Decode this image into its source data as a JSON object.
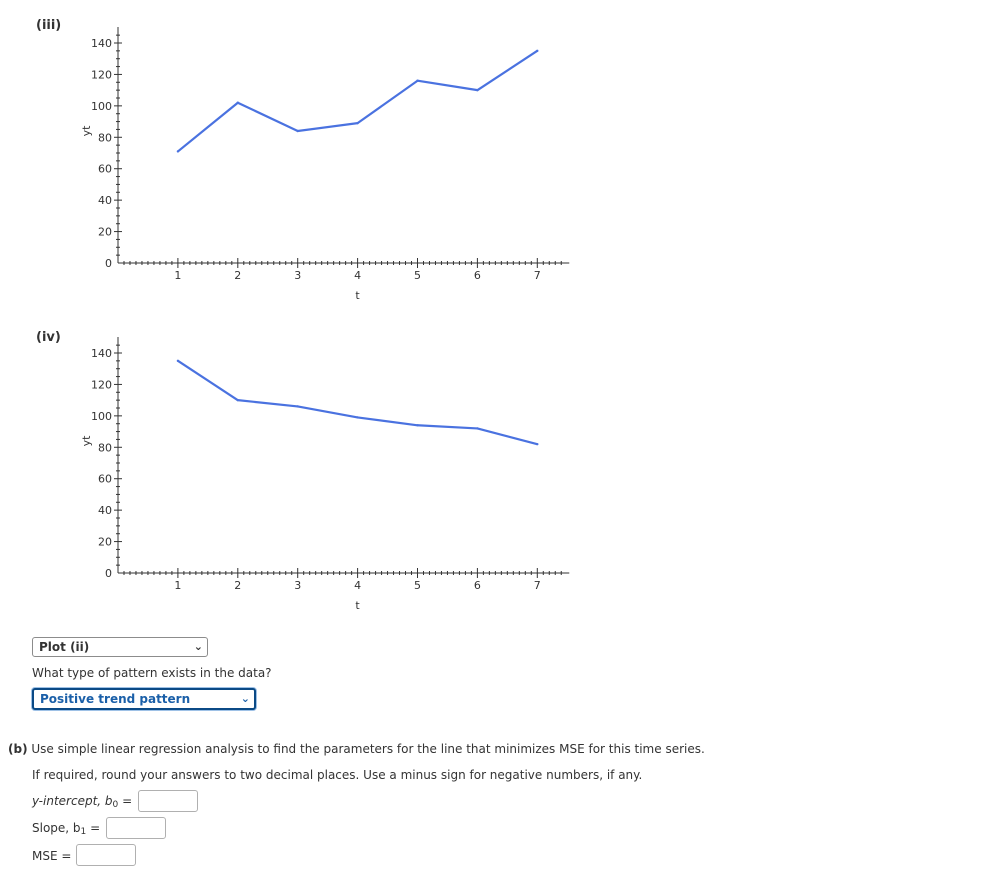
{
  "plots": [
    {
      "label": "(iii)",
      "chart_data": {
        "type": "line",
        "x": [
          1,
          2,
          3,
          4,
          5,
          6,
          7
        ],
        "series": [
          {
            "values": [
              71,
              102,
              84,
              89,
              116,
              110,
              135
            ],
            "color": "#4a72e0"
          }
        ],
        "xlabel": "t",
        "ylabel": "yt",
        "xlim": [
          0,
          7.4
        ],
        "ylim": [
          0,
          145
        ],
        "xticks": [
          "1",
          "2",
          "3",
          "4",
          "5",
          "6",
          "7"
        ],
        "yticks": [
          "0",
          "20",
          "40",
          "60",
          "80",
          "100",
          "120",
          "140"
        ]
      }
    },
    {
      "label": "(iv)",
      "chart_data": {
        "type": "line",
        "x": [
          1,
          2,
          3,
          4,
          5,
          6,
          7
        ],
        "series": [
          {
            "values": [
              135,
              110,
              106,
              99,
              94,
              92,
              82
            ],
            "color": "#4a72e0"
          }
        ],
        "xlabel": "t",
        "ylabel": "yt",
        "xlim": [
          0,
          7.4
        ],
        "ylim": [
          0,
          145
        ],
        "xticks": [
          "1",
          "2",
          "3",
          "4",
          "5",
          "6",
          "7"
        ],
        "yticks": [
          "0",
          "20",
          "40",
          "60",
          "80",
          "100",
          "120",
          "140"
        ]
      }
    }
  ],
  "plot_select": {
    "value": "Plot (ii)"
  },
  "pattern_question": "What type of pattern exists in the data?",
  "pattern_select": {
    "value": "Positive trend pattern"
  },
  "part_b": {
    "label": "(b)",
    "question": "Use simple linear regression analysis to find the parameters for the line that minimizes MSE for this time series.",
    "instructions": "If required, round your answers to two decimal places. Use a minus sign for negative numbers, if any.",
    "intercept_label": "y-intercept, b",
    "intercept_sub": "0",
    "slope_label": "Slope, b",
    "slope_sub": "1",
    "equals": "=",
    "mse_label": "MSE ="
  }
}
